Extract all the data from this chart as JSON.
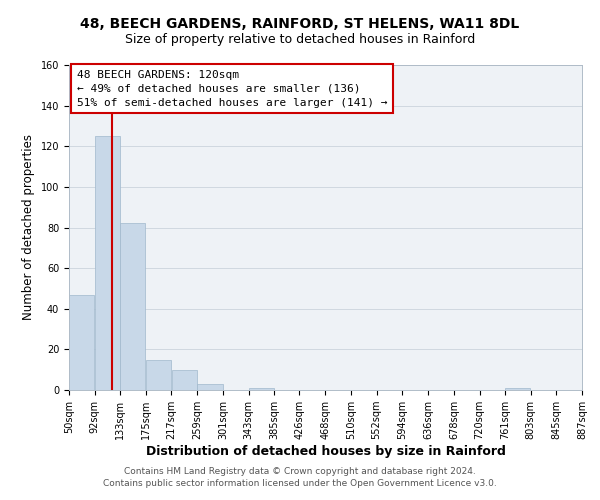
{
  "title_line1": "48, BEECH GARDENS, RAINFORD, ST HELENS, WA11 8DL",
  "title_line2": "Size of property relative to detached houses in Rainford",
  "xlabel": "Distribution of detached houses by size in Rainford",
  "ylabel": "Number of detached properties",
  "bar_values": [
    47,
    125,
    82,
    15,
    10,
    3,
    0,
    1,
    0,
    0,
    0,
    0,
    0,
    0,
    0,
    0,
    0,
    1,
    0,
    0
  ],
  "bar_left_edges": [
    50,
    92,
    133,
    175,
    217,
    259,
    301,
    343,
    385,
    426,
    468,
    510,
    552,
    594,
    636,
    678,
    720,
    761,
    803,
    845
  ],
  "bar_widths": [
    42,
    41,
    42,
    42,
    42,
    42,
    42,
    42,
    41,
    42,
    42,
    42,
    42,
    42,
    42,
    42,
    41,
    42,
    42,
    42
  ],
  "x_tick_labels": [
    "50sqm",
    "92sqm",
    "133sqm",
    "175sqm",
    "217sqm",
    "259sqm",
    "301sqm",
    "343sqm",
    "385sqm",
    "426sqm",
    "468sqm",
    "510sqm",
    "552sqm",
    "594sqm",
    "636sqm",
    "678sqm",
    "720sqm",
    "761sqm",
    "803sqm",
    "845sqm",
    "887sqm"
  ],
  "x_tick_positions": [
    50,
    92,
    133,
    175,
    217,
    259,
    301,
    343,
    385,
    426,
    468,
    510,
    552,
    594,
    636,
    678,
    720,
    761,
    803,
    845,
    887
  ],
  "ylim": [
    0,
    160
  ],
  "xlim": [
    50,
    887
  ],
  "bar_color": "#c8d8e8",
  "bar_edge_color": "#a0b8cc",
  "red_line_x": 120,
  "red_line_color": "#cc0000",
  "annotation_line1": "48 BEECH GARDENS: 120sqm",
  "annotation_line2": "← 49% of detached houses are smaller (136)",
  "annotation_line3": "51% of semi-detached houses are larger (141) →",
  "grid_color": "#d0d8e0",
  "bg_color": "#eef2f6",
  "footer_line1": "Contains HM Land Registry data © Crown copyright and database right 2024.",
  "footer_line2": "Contains public sector information licensed under the Open Government Licence v3.0.",
  "title_fontsize": 10,
  "subtitle_fontsize": 9,
  "tick_fontsize": 7,
  "ylabel_fontsize": 8.5,
  "xlabel_fontsize": 9,
  "annotation_fontsize": 8,
  "footer_fontsize": 6.5
}
